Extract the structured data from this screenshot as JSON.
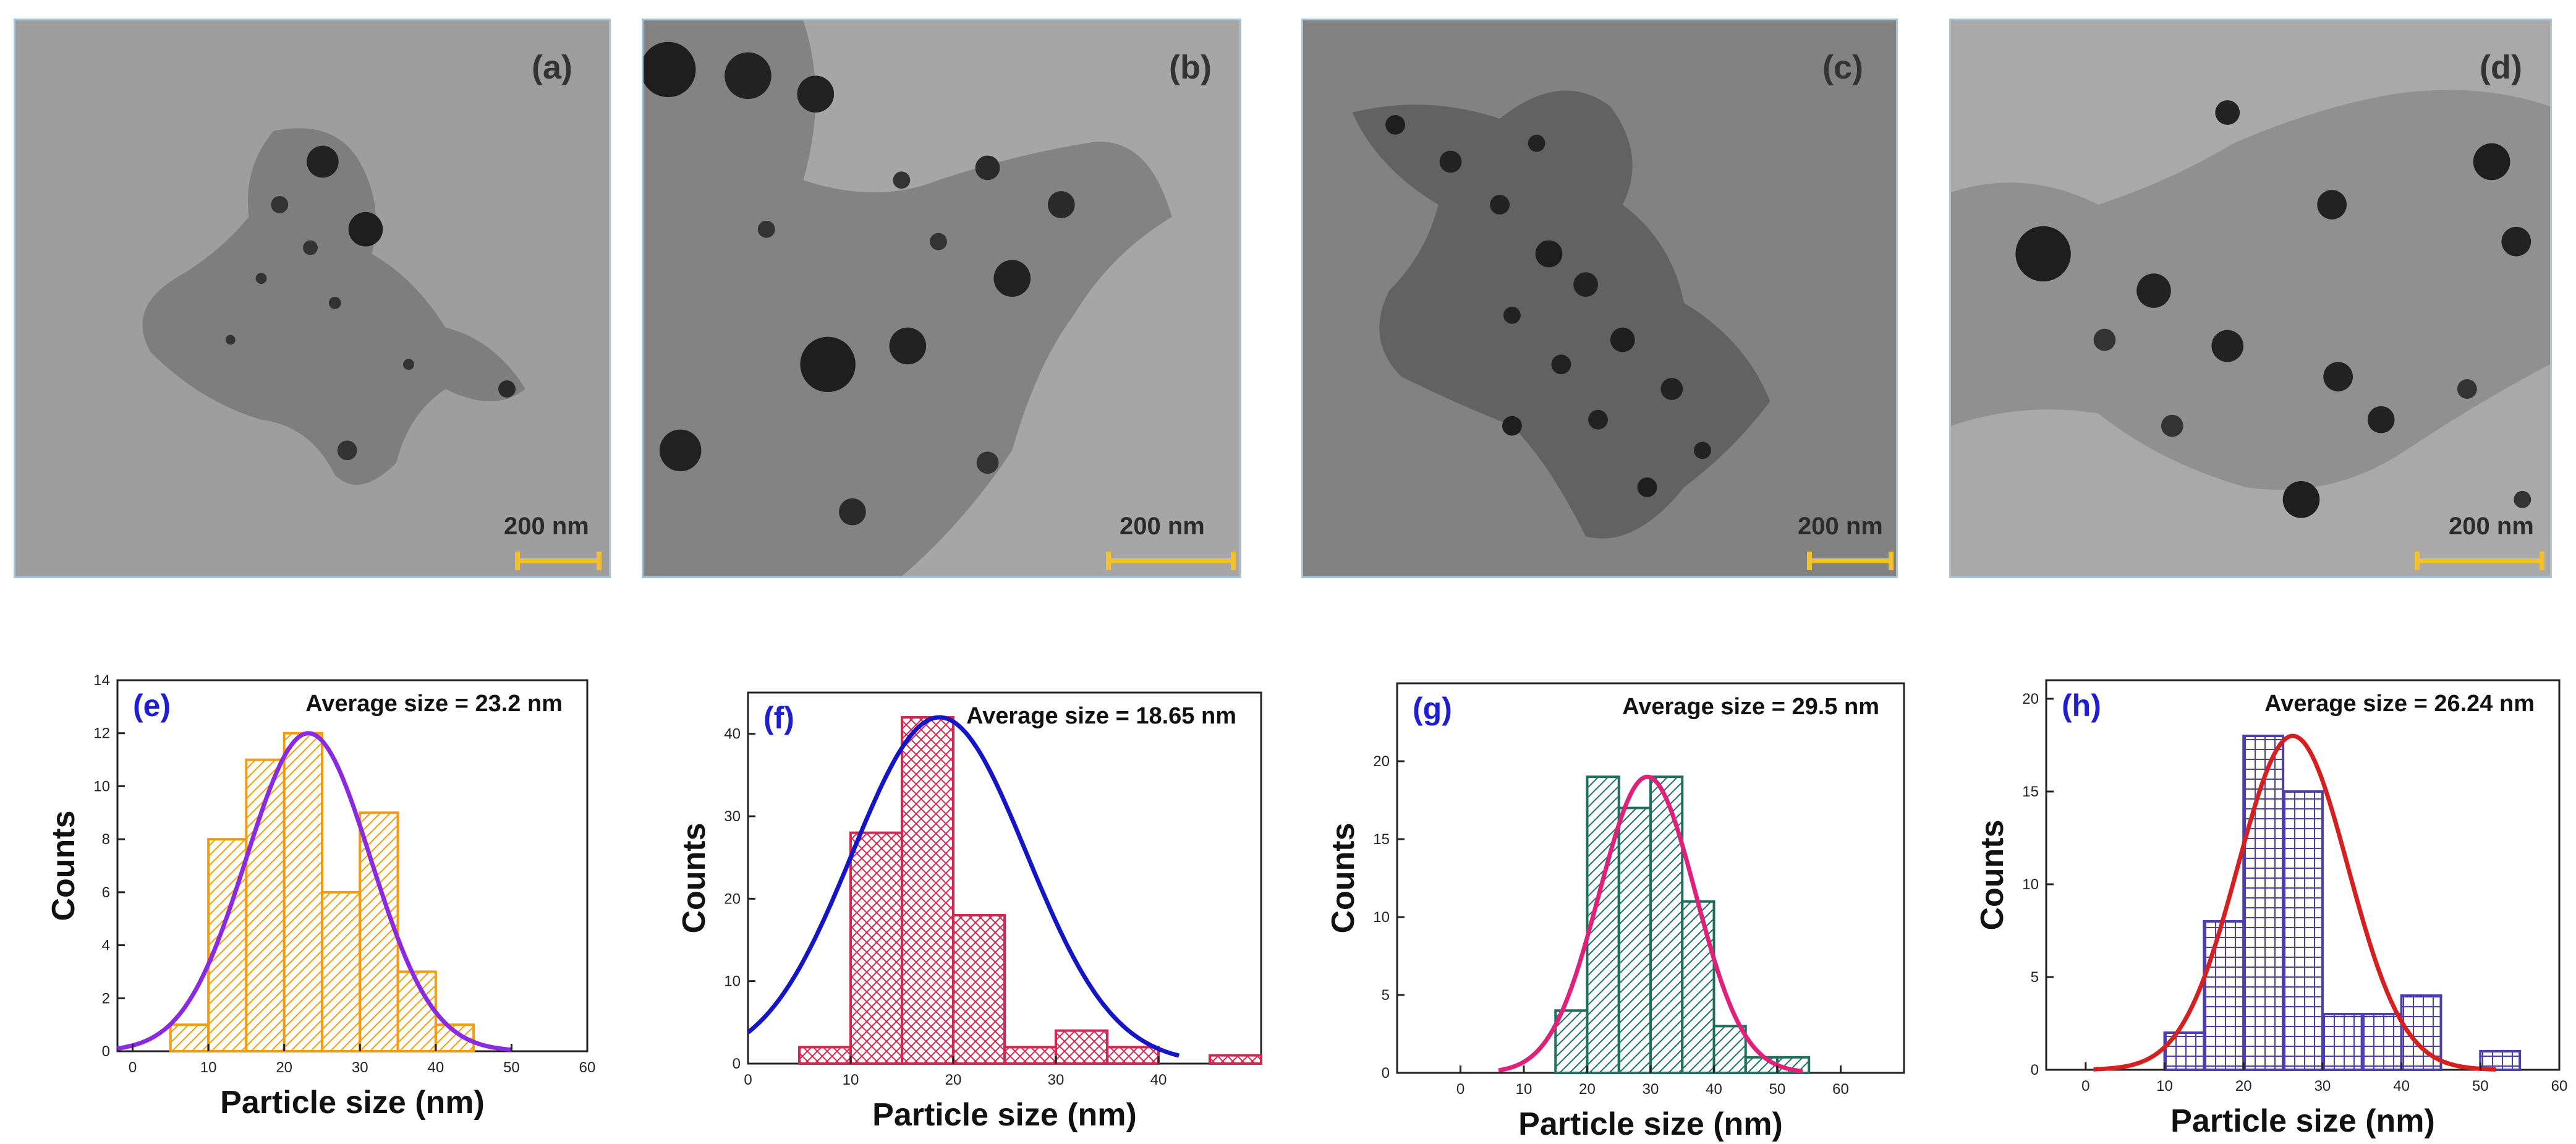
{
  "tem_panels": [
    {
      "label": "(a)",
      "scale_bar": "200 nm",
      "background": "#9d9d9d"
    },
    {
      "label": "(b)",
      "scale_bar": "200 nm",
      "background": "#a4a4a4"
    },
    {
      "label": "(c)",
      "scale_bar": "200 nm",
      "background": "#7f7f7f"
    },
    {
      "label": "(d)",
      "scale_bar": "200 nm",
      "background": "#a7a7a7"
    }
  ],
  "chart_data": [
    {
      "type": "bar",
      "panel_label": "(e)",
      "annotation": "Average size = 23.2 nm",
      "xlabel": "Particle size (nm)",
      "ylabel": "Counts",
      "xlim": [
        -2,
        60
      ],
      "ylim": [
        0,
        14
      ],
      "xticks": [
        0,
        10,
        20,
        30,
        40,
        50,
        60
      ],
      "yticks": [
        0,
        2,
        4,
        6,
        8,
        10,
        12,
        14
      ],
      "bin_width": 5,
      "bins": [
        5,
        10,
        15,
        20,
        25,
        30,
        35,
        40
      ],
      "values": [
        1,
        8,
        11,
        12,
        6,
        9,
        3,
        1
      ],
      "fit": {
        "type": "gaussian",
        "mean": 23.2,
        "sigma": 8.2,
        "peak": 12,
        "range": [
          -2,
          50
        ]
      },
      "colors": {
        "bars": "#f39c12",
        "fit": "#8a2be2",
        "label": "#1f1fcf"
      },
      "hatch": "diagonal"
    },
    {
      "type": "bar",
      "panel_label": "(f)",
      "annotation": "Average size = 18.65 nm",
      "xlabel": "Particle size (nm)",
      "ylabel": "Counts",
      "xlim": [
        0,
        50
      ],
      "ylim": [
        0,
        45
      ],
      "xticks": [
        0,
        10,
        20,
        30,
        40
      ],
      "yticks": [
        0,
        10,
        20,
        30,
        40
      ],
      "bin_width": 5,
      "bins": [
        5,
        10,
        15,
        20,
        25,
        30,
        35,
        45
      ],
      "values": [
        2,
        28,
        42,
        18,
        2,
        4,
        2,
        1
      ],
      "fit": {
        "type": "gaussian",
        "mean": 18.65,
        "sigma": 8.5,
        "peak": 42,
        "range": [
          0,
          42
        ]
      },
      "colors": {
        "bars": "#d6264f",
        "fit": "#1515c8",
        "label": "#1f1fcf"
      },
      "hatch": "cross-diagonal"
    },
    {
      "type": "bar",
      "panel_label": "(g)",
      "annotation": "Average size = 29.5 nm",
      "xlabel": "Particle size (nm)",
      "ylabel": "Counts",
      "xlim": [
        -10,
        70
      ],
      "ylim": [
        0,
        25
      ],
      "xticks": [
        0,
        10,
        20,
        30,
        40,
        50,
        60
      ],
      "yticks": [
        0,
        5,
        10,
        15,
        20
      ],
      "bin_width": 5,
      "bins": [
        15,
        20,
        25,
        30,
        35,
        40,
        45,
        50
      ],
      "values": [
        4,
        19,
        17,
        19,
        11,
        3,
        1,
        1
      ],
      "fit": {
        "type": "gaussian",
        "mean": 29.5,
        "sigma": 7.6,
        "peak": 19,
        "range": [
          6,
          54
        ]
      },
      "colors": {
        "bars": "#1f6f5c",
        "fit": "#e0207a",
        "label": "#1f1fcf"
      },
      "hatch": "diagonal"
    },
    {
      "type": "bar",
      "panel_label": "(h)",
      "annotation": "Average size = 26.24 nm",
      "xlabel": "Particle size (nm)",
      "ylabel": "Counts",
      "xlim": [
        -5,
        60
      ],
      "ylim": [
        0,
        21
      ],
      "xticks": [
        0,
        10,
        20,
        30,
        40,
        50,
        60
      ],
      "yticks": [
        0,
        5,
        10,
        15,
        20
      ],
      "bin_width": 5,
      "bins": [
        10,
        15,
        20,
        25,
        30,
        35,
        40,
        50
      ],
      "values": [
        2,
        8,
        18,
        15,
        3,
        3,
        4,
        1
      ],
      "fit": {
        "type": "gaussian",
        "mean": 26.24,
        "sigma": 7.0,
        "peak": 18,
        "range": [
          1,
          52
        ]
      },
      "colors": {
        "bars": "#4b3fb0",
        "fit": "#d61f1f",
        "label": "#1f1fcf"
      },
      "hatch": "grid"
    }
  ]
}
